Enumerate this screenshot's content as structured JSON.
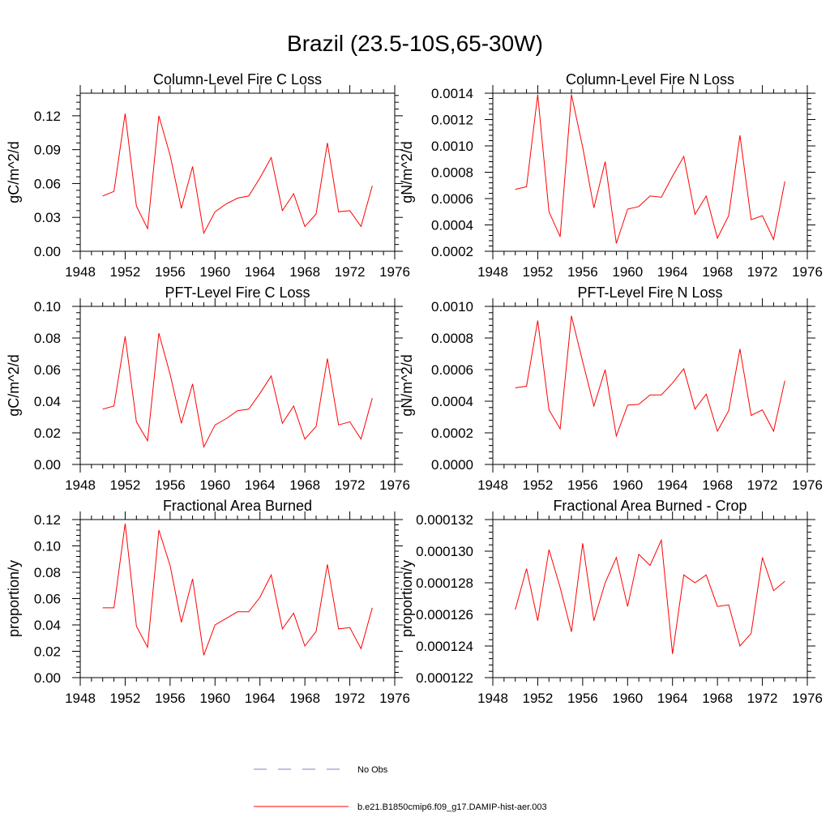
{
  "title": "Brazil (23.5-10S,65-30W)",
  "legend": [
    {
      "label": "No Obs",
      "style": "dashed",
      "color": "#8080c8"
    },
    {
      "label": "b.e21.B1850cmip6.f09_g17.DAMIP-hist-aer.003",
      "style": "solid",
      "color": "#ff0000"
    }
  ],
  "chart_data": [
    {
      "type": "line",
      "title": "Column-Level Fire C Loss",
      "ylabel": "gC/m^2/d",
      "xlim": [
        1948,
        1976
      ],
      "ylim": [
        0.0,
        0.14
      ],
      "xticks": [
        1948,
        1952,
        1956,
        1960,
        1964,
        1968,
        1972,
        1976
      ],
      "yticks": [
        0.0,
        0.03,
        0.06,
        0.09,
        0.12
      ],
      "ytick_labels": [
        "0.00",
        "0.03",
        "0.06",
        "0.09",
        "0.12"
      ],
      "x": [
        1950,
        1951,
        1952,
        1953,
        1954,
        1955,
        1956,
        1957,
        1958,
        1959,
        1960,
        1961,
        1962,
        1963,
        1964,
        1965,
        1966,
        1967,
        1968,
        1969,
        1970,
        1971,
        1972,
        1973,
        1974
      ],
      "series": [
        {
          "color": "#ff0000",
          "values": [
            0.049,
            0.053,
            0.122,
            0.04,
            0.02,
            0.12,
            0.085,
            0.038,
            0.075,
            0.016,
            0.035,
            0.042,
            0.047,
            0.049,
            0.065,
            0.083,
            0.036,
            0.051,
            0.022,
            0.033,
            0.096,
            0.035,
            0.036,
            0.022,
            0.058
          ]
        }
      ]
    },
    {
      "type": "line",
      "title": "Column-Level Fire N Loss",
      "ylabel": "gN/m^2/d",
      "xlim": [
        1948,
        1976
      ],
      "ylim": [
        0.0002,
        0.0014
      ],
      "xticks": [
        1948,
        1952,
        1956,
        1960,
        1964,
        1968,
        1972,
        1976
      ],
      "yticks": [
        0.0002,
        0.0004,
        0.0006,
        0.0008,
        0.001,
        0.0012,
        0.0014
      ],
      "ytick_labels": [
        "0.0002",
        "0.0004",
        "0.0006",
        "0.0008",
        "0.0010",
        "0.0012",
        "0.0014"
      ],
      "x": [
        1950,
        1951,
        1952,
        1953,
        1954,
        1955,
        1956,
        1957,
        1958,
        1959,
        1960,
        1961,
        1962,
        1963,
        1964,
        1965,
        1966,
        1967,
        1968,
        1969,
        1970,
        1971,
        1972,
        1973,
        1974
      ],
      "series": [
        {
          "color": "#ff0000",
          "values": [
            0.00067,
            0.00069,
            0.00139,
            0.0005,
            0.00031,
            0.00139,
            0.00099,
            0.00053,
            0.00088,
            0.00026,
            0.00052,
            0.00054,
            0.00062,
            0.00061,
            0.00077,
            0.00092,
            0.00048,
            0.00062,
            0.0003,
            0.00047,
            0.00108,
            0.00044,
            0.00047,
            0.00029,
            0.00073
          ]
        }
      ]
    },
    {
      "type": "line",
      "title": "PFT-Level Fire C Loss",
      "ylabel": "gC/m^2/d",
      "xlim": [
        1948,
        1976
      ],
      "ylim": [
        0.0,
        0.1
      ],
      "xticks": [
        1948,
        1952,
        1956,
        1960,
        1964,
        1968,
        1972,
        1976
      ],
      "yticks": [
        0.0,
        0.02,
        0.04,
        0.06,
        0.08,
        0.1
      ],
      "ytick_labels": [
        "0.00",
        "0.02",
        "0.04",
        "0.06",
        "0.08",
        "0.10"
      ],
      "x": [
        1950,
        1951,
        1952,
        1953,
        1954,
        1955,
        1956,
        1957,
        1958,
        1959,
        1960,
        1961,
        1962,
        1963,
        1964,
        1965,
        1966,
        1967,
        1968,
        1969,
        1970,
        1971,
        1972,
        1973,
        1974
      ],
      "series": [
        {
          "color": "#ff0000",
          "values": [
            0.035,
            0.037,
            0.081,
            0.027,
            0.015,
            0.083,
            0.057,
            0.026,
            0.051,
            0.011,
            0.025,
            0.029,
            0.034,
            0.035,
            0.045,
            0.056,
            0.026,
            0.037,
            0.016,
            0.024,
            0.067,
            0.025,
            0.027,
            0.016,
            0.042
          ]
        }
      ]
    },
    {
      "type": "line",
      "title": "PFT-Level Fire N Loss",
      "ylabel": "gN/m^2/d",
      "xlim": [
        1948,
        1976
      ],
      "ylim": [
        0.0,
        0.001
      ],
      "xticks": [
        1948,
        1952,
        1956,
        1960,
        1964,
        1968,
        1972,
        1976
      ],
      "yticks": [
        0.0,
        0.0002,
        0.0004,
        0.0006,
        0.0008,
        0.001
      ],
      "ytick_labels": [
        "0.0000",
        "0.0002",
        "0.0004",
        "0.0006",
        "0.0008",
        "0.0010"
      ],
      "x": [
        1950,
        1951,
        1952,
        1953,
        1954,
        1955,
        1956,
        1957,
        1958,
        1959,
        1960,
        1961,
        1962,
        1963,
        1964,
        1965,
        1966,
        1967,
        1968,
        1969,
        1970,
        1971,
        1972,
        1973,
        1974
      ],
      "series": [
        {
          "color": "#ff0000",
          "values": [
            0.000485,
            0.000495,
            0.00091,
            0.000345,
            0.000225,
            0.00094,
            0.00065,
            0.00037,
            0.0006,
            0.00018,
            0.000375,
            0.00038,
            0.00044,
            0.00044,
            0.000515,
            0.000605,
            0.00035,
            0.000445,
            0.00021,
            0.00034,
            0.00073,
            0.00031,
            0.000345,
            0.00021,
            0.00053
          ]
        }
      ]
    },
    {
      "type": "line",
      "title": "Fractional Area Burned",
      "ylabel": "proportion/y",
      "xlim": [
        1948,
        1976
      ],
      "ylim": [
        0.0,
        0.12
      ],
      "xticks": [
        1948,
        1952,
        1956,
        1960,
        1964,
        1968,
        1972,
        1976
      ],
      "yticks": [
        0.0,
        0.02,
        0.04,
        0.06,
        0.08,
        0.1,
        0.12
      ],
      "ytick_labels": [
        "0.00",
        "0.02",
        "0.04",
        "0.06",
        "0.08",
        "0.10",
        "0.12"
      ],
      "x": [
        1950,
        1951,
        1952,
        1953,
        1954,
        1955,
        1956,
        1957,
        1958,
        1959,
        1960,
        1961,
        1962,
        1963,
        1964,
        1965,
        1966,
        1967,
        1968,
        1969,
        1970,
        1971,
        1972,
        1973,
        1974
      ],
      "series": [
        {
          "color": "#ff0000",
          "values": [
            0.053,
            0.053,
            0.117,
            0.039,
            0.023,
            0.112,
            0.085,
            0.042,
            0.075,
            0.017,
            0.04,
            0.045,
            0.05,
            0.05,
            0.061,
            0.078,
            0.037,
            0.049,
            0.024,
            0.035,
            0.086,
            0.037,
            0.038,
            0.022,
            0.053
          ]
        }
      ]
    },
    {
      "type": "line",
      "title": "Fractional Area Burned - Crop",
      "ylabel": "proportion/y",
      "xlim": [
        1948,
        1976
      ],
      "ylim": [
        0.000122,
        0.000132
      ],
      "xticks": [
        1948,
        1952,
        1956,
        1960,
        1964,
        1968,
        1972,
        1976
      ],
      "yticks": [
        0.000122,
        0.000124,
        0.000126,
        0.000128,
        0.00013,
        0.000132
      ],
      "ytick_labels": [
        "0.000122",
        "0.000124",
        "0.000126",
        "0.000128",
        "0.000130",
        "0.000132"
      ],
      "x": [
        1950,
        1951,
        1952,
        1953,
        1954,
        1955,
        1956,
        1957,
        1958,
        1959,
        1960,
        1961,
        1962,
        1963,
        1964,
        1965,
        1966,
        1967,
        1968,
        1969,
        1970,
        1971,
        1972,
        1973,
        1974
      ],
      "series": [
        {
          "color": "#ff0000",
          "values": [
            0.0001263,
            0.0001289,
            0.0001256,
            0.0001301,
            0.0001277,
            0.0001249,
            0.0001305,
            0.0001256,
            0.000128,
            0.0001296,
            0.0001265,
            0.0001298,
            0.0001291,
            0.0001307,
            0.0001235,
            0.0001285,
            0.000128,
            0.0001285,
            0.0001265,
            0.0001266,
            0.000124,
            0.0001248,
            0.0001296,
            0.0001275,
            0.0001281
          ]
        }
      ]
    }
  ]
}
